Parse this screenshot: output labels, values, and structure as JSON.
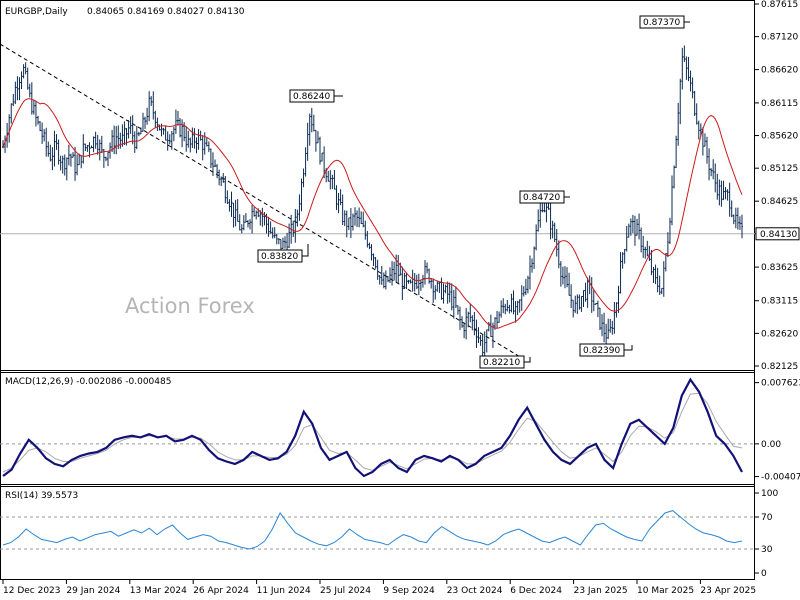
{
  "header": {
    "symbol": "EURGBP,Daily",
    "ohlc": "0.84065 0.84169 0.84027 0.84130"
  },
  "watermark": "Action Forex",
  "colors": {
    "candle": "#0b2a52",
    "ma": "#cc1b1b",
    "macd_line": "#111177",
    "macd_signal": "#aaaaaa",
    "rsi": "#2a86d6",
    "trend": "#000000"
  },
  "chart_data": [
    {
      "type": "candlestick",
      "name": "price",
      "y_ticks": [
        "0.87615",
        "0.87120",
        "0.86620",
        "0.86115",
        "0.85620",
        "0.85125",
        "0.84625",
        "0.84130",
        "0.83625",
        "0.83115",
        "0.82620",
        "0.82125"
      ],
      "ylim": [
        0.82125,
        0.87615
      ],
      "current_price": "0.84130",
      "annotations": [
        {
          "label": "0.87370",
          "value": 0.8737
        },
        {
          "label": "0.86240",
          "value": 0.8624
        },
        {
          "label": "0.84720",
          "value": 0.8472
        },
        {
          "label": "0.83820",
          "value": 0.8382
        },
        {
          "label": "0.82390",
          "value": 0.8239
        },
        {
          "label": "0.82210",
          "value": 0.8221
        }
      ],
      "closes": [
        0.8545,
        0.8595,
        0.864,
        0.8665,
        0.862,
        0.8585,
        0.856,
        0.853,
        0.8545,
        0.852,
        0.8535,
        0.851,
        0.854,
        0.855,
        0.856,
        0.853,
        0.8545,
        0.856,
        0.8555,
        0.8575,
        0.855,
        0.8575,
        0.861,
        0.859,
        0.856,
        0.8565,
        0.8575,
        0.857,
        0.8545,
        0.856,
        0.855,
        0.853,
        0.851,
        0.849,
        0.8465,
        0.8435,
        0.8415,
        0.844,
        0.8455,
        0.844,
        0.842,
        0.84,
        0.8395,
        0.841,
        0.843,
        0.85,
        0.86,
        0.856,
        0.852,
        0.85,
        0.847,
        0.844,
        0.8425,
        0.844,
        0.842,
        0.84,
        0.837,
        0.833,
        0.8345,
        0.836,
        0.834,
        0.833,
        0.834,
        0.8355,
        0.835,
        0.833,
        0.8325,
        0.832,
        0.83,
        0.827,
        0.829,
        0.827,
        0.824,
        0.8265,
        0.828,
        0.83,
        0.831,
        0.829,
        0.832,
        0.8355,
        0.841,
        0.846,
        0.844,
        0.84,
        0.835,
        0.832,
        0.83,
        0.832,
        0.833,
        0.83,
        0.827,
        0.8255,
        0.83,
        0.838,
        0.843,
        0.842,
        0.84,
        0.837,
        0.834,
        0.833,
        0.842,
        0.855,
        0.868,
        0.865,
        0.86,
        0.856,
        0.852,
        0.849,
        0.847,
        0.847,
        0.843,
        0.8413
      ]
    },
    {
      "type": "line",
      "name": "MACD(12,26,9)",
      "label": "MACD(12,26,9) -0.002086 -0.000485",
      "y_ticks": [
        "0.007623",
        "0.00",
        "-0.004073"
      ],
      "ylim": [
        -0.0045,
        0.0082
      ],
      "series": [
        {
          "values": [
            -0.004,
            -0.0032,
            -0.0012,
            0.0005,
            -0.0005,
            -0.0018,
            -0.0025,
            -0.0028,
            -0.002,
            -0.0015,
            -0.0012,
            -0.001,
            -0.0005,
            0.0005,
            0.0008,
            0.001,
            0.0008,
            0.0012,
            0.0008,
            0.001,
            0.0003,
            0.0005,
            0.001,
            0.0005,
            -0.0008,
            -0.0018,
            -0.0022,
            -0.0025,
            -0.002,
            -0.001,
            -0.0015,
            -0.002,
            -0.0018,
            -0.001,
            0.001,
            0.004,
            0.0025,
            -0.0005,
            -0.002,
            -0.0015,
            -0.001,
            -0.003,
            -0.004,
            -0.0035,
            -0.0025,
            -0.002,
            -0.003,
            -0.0035,
            -0.002,
            -0.0015,
            -0.0018,
            -0.0022,
            -0.0015,
            -0.002,
            -0.003,
            -0.0025,
            -0.0015,
            -0.001,
            -0.0005,
            0.001,
            0.003,
            0.0045,
            0.0025,
            0.0005,
            -0.001,
            -0.002,
            -0.0025,
            -0.0015,
            -0.0005,
            0.0,
            -0.002,
            -0.003,
            0.0,
            0.0025,
            0.003,
            0.002,
            0.001,
            0.0,
            0.002,
            0.006,
            0.008,
            0.0065,
            0.004,
            0.001,
            0.0,
            -0.0015,
            -0.0035
          ]
        },
        {
          "values": [
            -0.0035,
            -0.003,
            -0.002,
            -0.0008,
            -0.0005,
            -0.001,
            -0.0018,
            -0.0022,
            -0.0022,
            -0.0018,
            -0.0015,
            -0.0012,
            -0.0008,
            0.0,
            0.0005,
            0.0008,
            0.0008,
            0.001,
            0.0009,
            0.0009,
            0.0006,
            0.0006,
            0.0008,
            0.0007,
            0.0,
            -0.001,
            -0.0016,
            -0.002,
            -0.002,
            -0.0015,
            -0.0015,
            -0.0017,
            -0.0017,
            -0.0013,
            -0.0002,
            0.002,
            0.0024,
            0.0008,
            -0.0008,
            -0.0012,
            -0.0011,
            -0.002,
            -0.003,
            -0.0033,
            -0.0028,
            -0.0023,
            -0.0027,
            -0.0031,
            -0.0025,
            -0.0019,
            -0.0018,
            -0.002,
            -0.0017,
            -0.0019,
            -0.0025,
            -0.0025,
            -0.0019,
            -0.0014,
            -0.0009,
            0.0002,
            0.0018,
            0.0032,
            0.0028,
            0.0015,
            0.0002,
            -0.001,
            -0.0018,
            -0.0016,
            -0.001,
            -0.0005,
            -0.0013,
            -0.0022,
            -0.001,
            0.001,
            0.0022,
            0.0021,
            0.0015,
            0.0007,
            0.0014,
            0.004,
            0.0062,
            0.0063,
            0.005,
            0.0028,
            0.0012,
            -0.0003,
            -0.0005
          ]
        }
      ]
    },
    {
      "type": "line",
      "name": "RSI(14)",
      "label": "RSI(14) 39.5573",
      "y_ticks": [
        "100",
        "70",
        "30",
        "0"
      ],
      "levels": [
        70,
        30
      ],
      "ylim": [
        0,
        100
      ],
      "series": [
        {
          "values": [
            35,
            38,
            45,
            55,
            48,
            42,
            40,
            38,
            42,
            45,
            40,
            44,
            48,
            50,
            52,
            46,
            50,
            54,
            50,
            56,
            48,
            55,
            60,
            50,
            42,
            45,
            48,
            46,
            40,
            38,
            35,
            32,
            30,
            33,
            40,
            55,
            75,
            62,
            50,
            45,
            40,
            36,
            34,
            38,
            45,
            55,
            48,
            42,
            40,
            38,
            35,
            42,
            48,
            45,
            40,
            38,
            50,
            58,
            52,
            46,
            42,
            40,
            38,
            35,
            40,
            48,
            52,
            55,
            50,
            45,
            40,
            38,
            42,
            45,
            40,
            35,
            48,
            60,
            62,
            55,
            50,
            45,
            42,
            40,
            55,
            65,
            75,
            78,
            70,
            62,
            55,
            50,
            48,
            45,
            40,
            38,
            40
          ]
        }
      ]
    }
  ],
  "x_axis": {
    "ticks": [
      "12 Dec 2023",
      "29 Jan 2024",
      "13 Mar 2024",
      "26 Apr 2024",
      "11 Jun 2024",
      "25 Jul 2024",
      "9 Sep 2024",
      "23 Oct 2024",
      "6 Dec 2024",
      "23 Jan 2025",
      "10 Mar 2025",
      "23 Apr 2025"
    ]
  }
}
